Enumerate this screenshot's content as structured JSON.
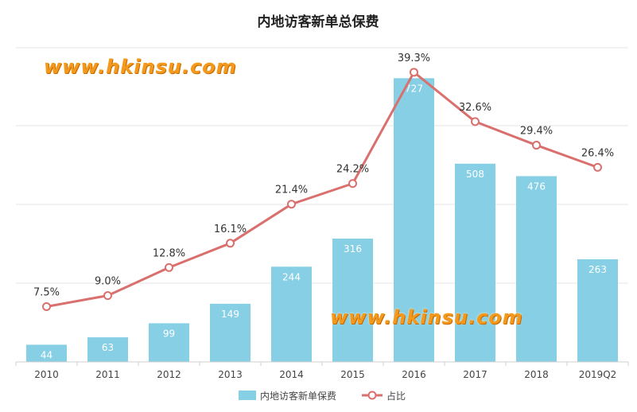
{
  "watermarks": [
    "www.hkinsu.com",
    "www.hkinsu.com"
  ],
  "chart_data": {
    "type": "bar",
    "title": "内地访客新单总保费",
    "categories": [
      "2010",
      "2011",
      "2012",
      "2013",
      "2014",
      "2015",
      "2016",
      "2017",
      "2018",
      "2019Q2"
    ],
    "series": [
      {
        "name": "内地访客新单保费",
        "type": "bar",
        "values": [
          44,
          63,
          99,
          149,
          244,
          316,
          727,
          508,
          476,
          263
        ],
        "color": "#87cfe5"
      },
      {
        "name": "占比",
        "type": "line",
        "values": [
          7.5,
          9.0,
          12.8,
          16.1,
          21.4,
          24.2,
          39.3,
          32.6,
          29.4,
          26.4
        ],
        "labels": [
          "7.5%",
          "9.0%",
          "12.8%",
          "16.1%",
          "21.4%",
          "24.2%",
          "39.3%",
          "32.6%",
          "29.4%",
          "26.4%"
        ],
        "color": "#d9706e"
      }
    ],
    "bar_axis_range": [
      0,
      850
    ],
    "line_axis_range": [
      0,
      45
    ],
    "grid": true,
    "legend": "bottom"
  }
}
